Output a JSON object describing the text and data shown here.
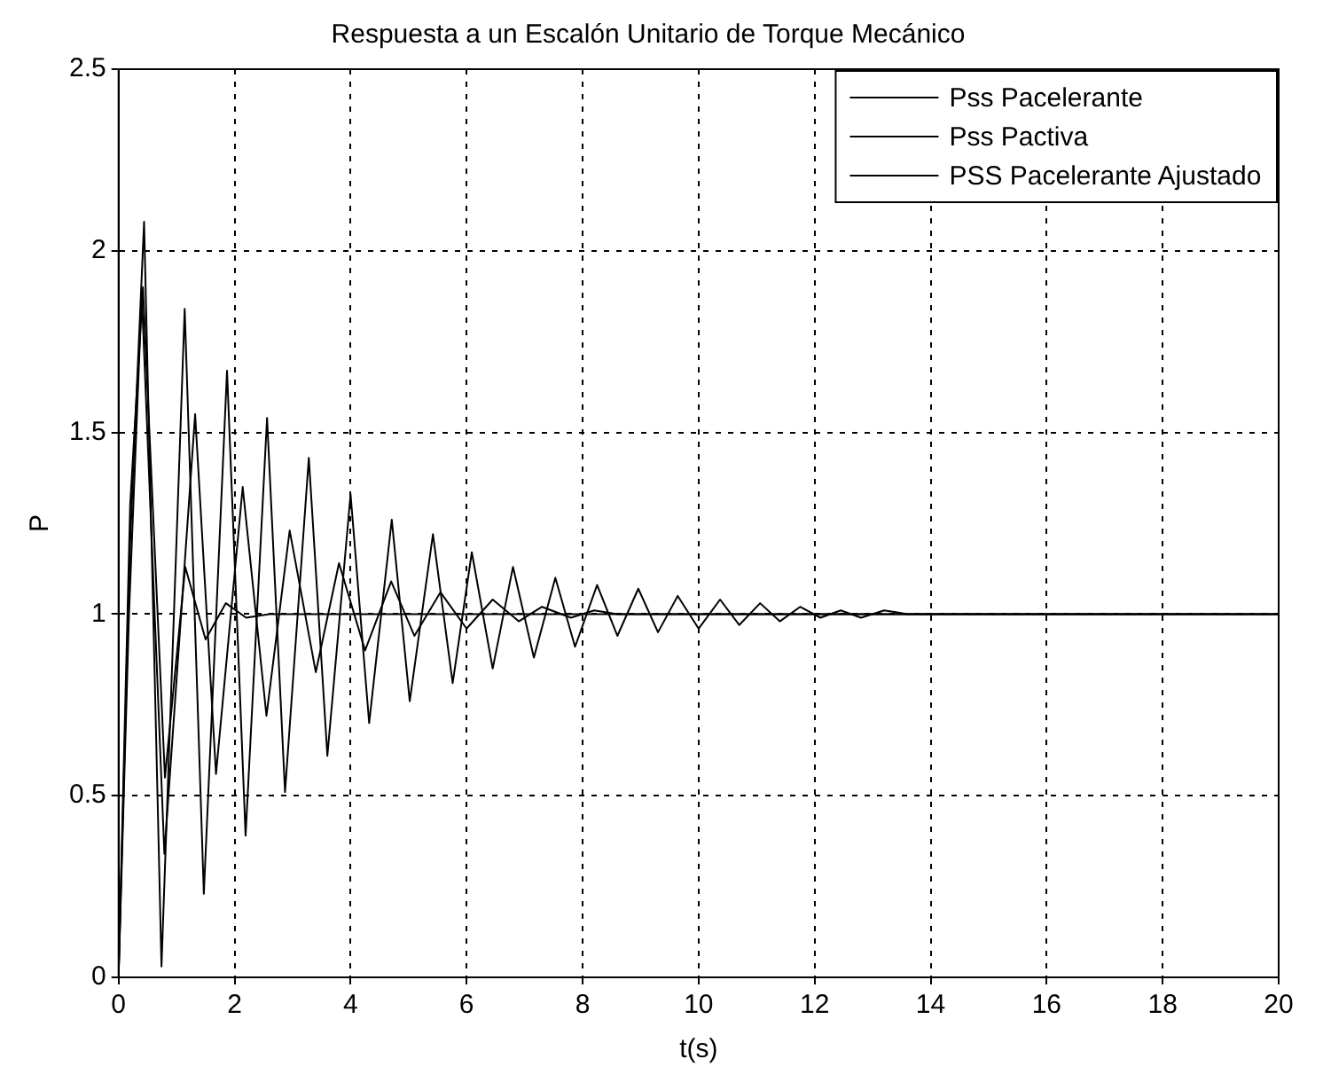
{
  "chart_data": {
    "type": "line",
    "title": "Respuesta a un Escalón Unitario de Torque Mecánico",
    "xlabel": "t(s)",
    "ylabel": "P",
    "xlim": [
      0,
      20
    ],
    "xticks": [
      0,
      2,
      4,
      6,
      8,
      10,
      12,
      14,
      16,
      18,
      20
    ],
    "ylim": [
      0,
      2.5
    ],
    "yticks": [
      0,
      0.5,
      1,
      1.5,
      2,
      2.5
    ],
    "grid": true,
    "legend": "top right",
    "line_style": "solid",
    "marker": "none",
    "series": [
      {
        "name": "Pss Pacelerante",
        "color": "#000000",
        "x": [
          0,
          0.2,
          0.44,
          0.74,
          1.14,
          1.47,
          1.87,
          2.19,
          2.56,
          2.87,
          3.28,
          3.6,
          4.0,
          4.32,
          4.71,
          5.02,
          5.42,
          5.76,
          6.09,
          6.45,
          6.8,
          7.16,
          7.53,
          7.87,
          8.25,
          8.6,
          8.96,
          9.3,
          9.64,
          10.0,
          10.37,
          10.7,
          11.06,
          11.4,
          11.75,
          12.1,
          12.45,
          12.8,
          13.2,
          13.6,
          20
        ],
        "values": [
          0,
          1.2,
          2.08,
          0.03,
          1.84,
          0.23,
          1.67,
          0.39,
          1.54,
          0.51,
          1.43,
          0.61,
          1.33,
          0.7,
          1.26,
          0.76,
          1.22,
          0.81,
          1.17,
          0.85,
          1.13,
          0.88,
          1.1,
          0.91,
          1.08,
          0.94,
          1.07,
          0.95,
          1.05,
          0.96,
          1.04,
          0.97,
          1.03,
          0.98,
          1.02,
          0.99,
          1.01,
          0.99,
          1.01,
          1.0,
          1.0
        ]
      },
      {
        "name": "Pss Pactiva",
        "color": "#000000",
        "x": [
          0,
          0.18,
          0.4,
          0.79,
          1.32,
          1.68,
          2.14,
          2.55,
          2.95,
          3.4,
          3.8,
          4.25,
          4.7,
          5.1,
          5.55,
          6.0,
          6.45,
          6.9,
          7.3,
          7.8,
          8.2,
          8.6,
          20
        ],
        "values": [
          0,
          1.0,
          1.88,
          0.34,
          1.55,
          0.56,
          1.35,
          0.72,
          1.23,
          0.84,
          1.14,
          0.9,
          1.09,
          0.94,
          1.06,
          0.96,
          1.04,
          0.98,
          1.02,
          0.99,
          1.01,
          1.0,
          1.0
        ]
      },
      {
        "name": "PSS Pacelerante Ajustado",
        "color": "#000000",
        "x": [
          0,
          0.2,
          0.42,
          0.8,
          1.15,
          1.5,
          1.85,
          2.2,
          2.6,
          20
        ],
        "values": [
          0,
          1.3,
          1.9,
          0.55,
          1.13,
          0.93,
          1.03,
          0.99,
          1.0,
          1.0
        ]
      }
    ]
  }
}
